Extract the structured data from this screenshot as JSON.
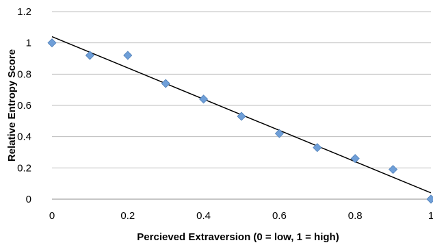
{
  "chart_data": {
    "type": "scatter",
    "title": "",
    "xlabel": "Percieved Extraversion (0 = low, 1 = high)",
    "ylabel": "Relative Entropy Score",
    "xlim": [
      0,
      1
    ],
    "ylim": [
      0,
      1.2
    ],
    "x_ticks": [
      "0",
      "0.2",
      "0.4",
      "0.6",
      "0.8",
      "1"
    ],
    "y_ticks": [
      "0",
      "0.2",
      "0.4",
      "0.6",
      "0.8",
      "1",
      "1.2"
    ],
    "grid": "horizontal",
    "marker": "diamond",
    "marker_color": "#6f9fd8",
    "series": [
      {
        "x": [
          0,
          0.1,
          0.2,
          0.3,
          0.4,
          0.5,
          0.6,
          0.7,
          0.8,
          0.9,
          1.0
        ],
        "y": [
          1.0,
          0.92,
          0.92,
          0.74,
          0.64,
          0.53,
          0.42,
          0.33,
          0.26,
          0.19,
          0.0
        ]
      }
    ],
    "trendline": {
      "type": "linear",
      "color": "#000000",
      "x": [
        0,
        1
      ],
      "y": [
        1.04,
        0.04
      ]
    }
  }
}
